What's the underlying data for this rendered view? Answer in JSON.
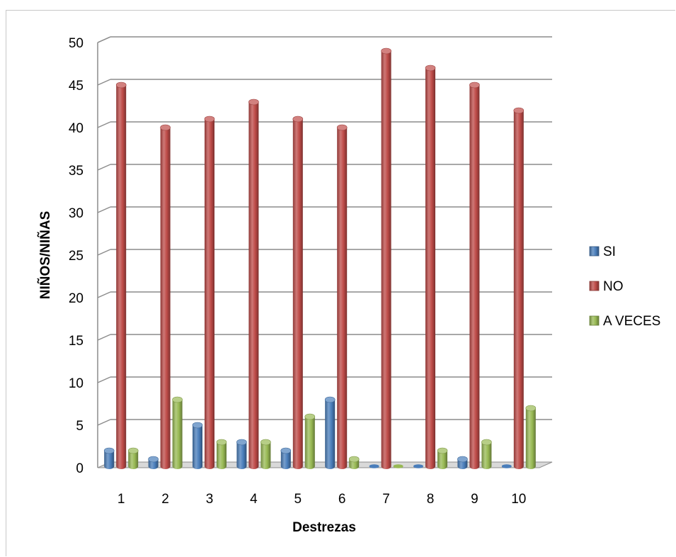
{
  "chart_data": {
    "type": "bar",
    "title": "",
    "xlabel": "Destrezas",
    "ylabel": "NIÑOS/NIÑAS",
    "categories": [
      "1",
      "2",
      "3",
      "4",
      "5",
      "6",
      "7",
      "8",
      "9",
      "10"
    ],
    "ylim": [
      0,
      50
    ],
    "yticks": [
      0,
      5,
      10,
      15,
      20,
      25,
      30,
      35,
      40,
      45,
      50
    ],
    "grid": true,
    "legend_position": "right",
    "series": [
      {
        "name": "SI",
        "color": "#4a7ebb",
        "values": [
          2,
          1,
          5,
          3,
          2,
          8,
          0,
          0,
          1,
          0
        ]
      },
      {
        "name": "NO",
        "color": "#be4b48",
        "values": [
          45,
          40,
          41,
          43,
          41,
          40,
          49,
          47,
          45,
          42
        ]
      },
      {
        "name": "A VECES",
        "color": "#98b954",
        "values": [
          2,
          8,
          3,
          3,
          6,
          1,
          0,
          2,
          3,
          7
        ]
      }
    ]
  }
}
